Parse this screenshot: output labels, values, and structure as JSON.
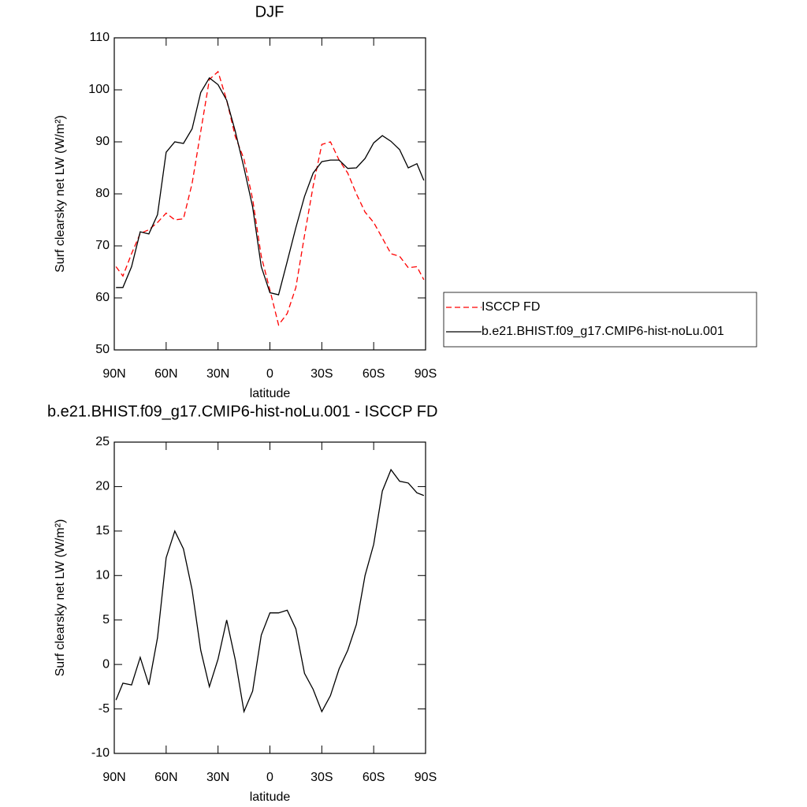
{
  "chart_data": [
    {
      "type": "line",
      "title": "DJF",
      "xlabel": "latitude",
      "ylabel": "Surf clearsky net LW (W/m²)",
      "x": [
        89,
        85,
        80,
        75,
        70,
        65,
        60,
        55,
        50,
        45,
        40,
        35,
        30,
        25,
        20,
        15,
        10,
        5,
        0,
        -5,
        -10,
        -15,
        -20,
        -25,
        -30,
        -35,
        -40,
        -45,
        -50,
        -55,
        -60,
        -65,
        -70,
        -75,
        -80,
        -85,
        -89
      ],
      "series": [
        {
          "name": "ISCCP FD",
          "color": "#ff0000",
          "dashed": true,
          "values": [
            66,
            64.2,
            68.5,
            72.4,
            73.1,
            74.5,
            76.3,
            75,
            75.2,
            82,
            92,
            102,
            103.5,
            98,
            91,
            86.7,
            79,
            68,
            61.5,
            54.8,
            57,
            62,
            72,
            81.5,
            89.5,
            90,
            86.5,
            84,
            80,
            76.5,
            74.5,
            71.5,
            68.5,
            68,
            65.8,
            66,
            63.5
          ]
        },
        {
          "name": "b.e21.BHIST.f09_g17.CMIP6-hist-noLu.001",
          "color": "#000000",
          "dashed": false,
          "values": [
            62,
            62,
            66,
            72.7,
            72.3,
            76,
            88,
            90,
            89.7,
            92.5,
            99.5,
            102.3,
            101,
            98,
            92,
            85,
            77.5,
            66,
            61,
            60.6,
            67,
            73.5,
            79.5,
            84,
            86.2,
            86.5,
            86.5,
            84.9,
            85,
            86.8,
            89.8,
            91.2,
            90.1,
            88.5,
            85,
            85.8,
            82.6
          ]
        }
      ],
      "xlim": [
        90,
        -90
      ],
      "xticks": [
        {
          "value": 90,
          "label": "90N"
        },
        {
          "value": 60,
          "label": "60N"
        },
        {
          "value": 30,
          "label": "30N"
        },
        0,
        {
          "value": -30,
          "label": "30S"
        },
        {
          "value": -60,
          "label": "60S"
        },
        {
          "value": -90,
          "label": "90S"
        }
      ],
      "ylim": [
        50,
        110
      ],
      "yticks": [
        50,
        60,
        70,
        80,
        90,
        100,
        110
      ],
      "legend": "right"
    },
    {
      "type": "line",
      "title": "b.e21.BHIST.f09_g17.CMIP6-hist-noLu.001 - ISCCP FD",
      "xlabel": "latitude",
      "ylabel": "Surf clearsky net LW (W/m²)",
      "x": [
        89,
        85,
        80,
        75,
        70,
        65,
        60,
        55,
        50,
        45,
        40,
        35,
        30,
        25,
        20,
        15,
        10,
        5,
        0,
        -5,
        -10,
        -15,
        -20,
        -25,
        -30,
        -35,
        -40,
        -45,
        -50,
        -55,
        -60,
        -65,
        -70,
        -75,
        -80,
        -85,
        -89
      ],
      "series": [
        {
          "color": "#000000",
          "dashed": false,
          "values": [
            -4,
            -2.1,
            -2.3,
            0.8,
            -2.3,
            3,
            12,
            15,
            13,
            8.4,
            1.6,
            -2.5,
            0.6,
            5,
            0.5,
            -5.3,
            -3,
            3.3,
            5.8,
            5.8,
            6.1,
            4,
            -1,
            -2.8,
            -5.3,
            -3.5,
            -0.5,
            1.6,
            4.5,
            10,
            13.5,
            19.5,
            21.9,
            20.6,
            20.4,
            19.3,
            19
          ]
        }
      ],
      "xlim": [
        90,
        -90
      ],
      "xticks": [
        {
          "value": 90,
          "label": "90N"
        },
        {
          "value": 60,
          "label": "60N"
        },
        {
          "value": 30,
          "label": "30N"
        },
        0,
        {
          "value": -30,
          "label": "30S"
        },
        {
          "value": -60,
          "label": "60S"
        },
        {
          "value": -90,
          "label": "90S"
        }
      ],
      "ylim": [
        -10,
        25
      ],
      "yticks": [
        -10,
        -5,
        0,
        5,
        10,
        15,
        20,
        25
      ]
    }
  ]
}
